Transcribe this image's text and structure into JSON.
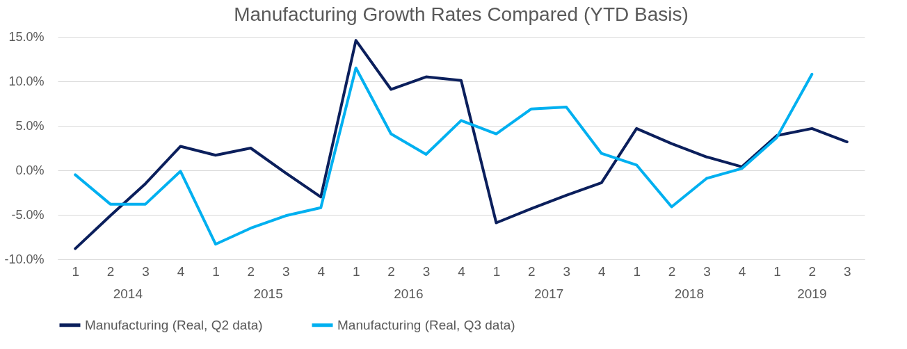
{
  "chart_data": {
    "type": "line",
    "title": "Manufacturing Growth Rates Compared (YTD Basis)",
    "categories": [
      "1",
      "2",
      "3",
      "4",
      "1",
      "2",
      "3",
      "4",
      "1",
      "2",
      "3",
      "4",
      "1",
      "2",
      "3",
      "4",
      "1",
      "2",
      "3",
      "4",
      "1",
      "2",
      "3"
    ],
    "annotations": [
      "2014",
      "2015",
      "2016",
      "2017",
      "2018",
      "2019"
    ],
    "series": [
      {
        "name": "Manufacturing (Real, Q2 data)",
        "color": "#0b1f5c",
        "values": [
          -8.8,
          -5.1,
          -1.5,
          2.7,
          1.7,
          2.5,
          -0.3,
          -3.0,
          14.6,
          9.1,
          10.5,
          10.1,
          -5.9,
          -4.3,
          -2.8,
          -1.4,
          4.7,
          3.0,
          1.5,
          0.4,
          3.9,
          4.7,
          3.2
        ]
      },
      {
        "name": "Manufacturing (Real, Q3 data)",
        "color": "#00b0f0",
        "values": [
          -0.5,
          -3.8,
          -3.8,
          -0.1,
          -8.3,
          -6.5,
          -5.1,
          -4.2,
          11.5,
          4.1,
          1.8,
          5.6,
          4.1,
          6.9,
          7.1,
          1.9,
          0.6,
          -4.1,
          -0.9,
          0.2,
          3.7,
          10.8,
          null
        ]
      }
    ],
    "ylim": [
      -10,
      15
    ],
    "yticks": [
      {
        "value": -10,
        "label": "-10.0%"
      },
      {
        "value": -5,
        "label": "-5.0%"
      },
      {
        "value": 0,
        "label": "0.0%"
      },
      {
        "value": 5,
        "label": "5.0%"
      },
      {
        "value": 10,
        "label": "10.0%"
      },
      {
        "value": 15,
        "label": "15.0%"
      }
    ],
    "grid": "y",
    "legend": "bottom",
    "marker": "none",
    "line_style": "solid"
  }
}
